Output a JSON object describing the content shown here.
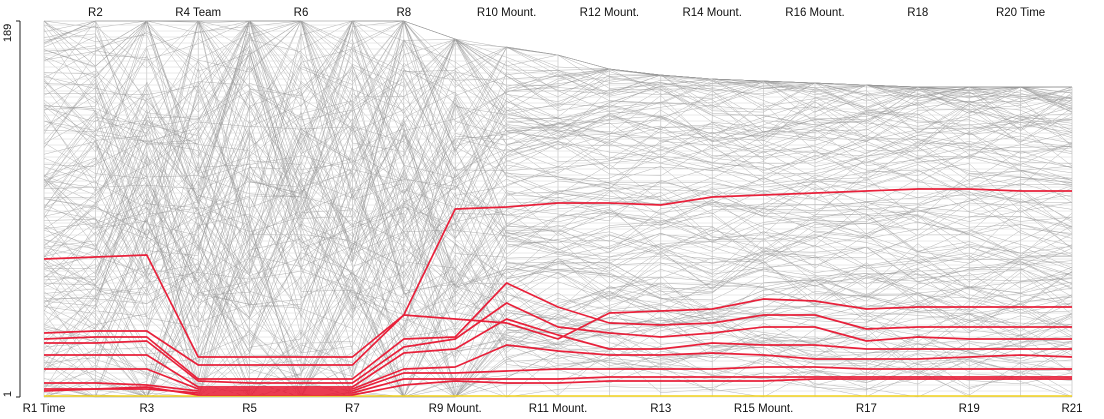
{
  "chart_data": {
    "type": "parallel_coordinates",
    "title": "",
    "y_axis": {
      "min_label": "1",
      "max_label": "189",
      "range": [
        1,
        189
      ]
    },
    "axes": [
      {
        "name": "R1 Time",
        "count": 189,
        "position": "bottom"
      },
      {
        "name": "R2",
        "count": 189,
        "position": "top"
      },
      {
        "name": "R3",
        "count": 189,
        "position": "bottom"
      },
      {
        "name": "R4 Team",
        "count": 189,
        "position": "top"
      },
      {
        "name": "R5",
        "count": 189,
        "position": "bottom"
      },
      {
        "name": "R6",
        "count": 189,
        "position": "top"
      },
      {
        "name": "R7",
        "count": 189,
        "position": "bottom"
      },
      {
        "name": "R8",
        "count": 189,
        "position": "top"
      },
      {
        "name": "R9 Mount.",
        "count": 180,
        "position": "bottom"
      },
      {
        "name": "R10 Mount.",
        "count": 176,
        "position": "top"
      },
      {
        "name": "R11 Mount.",
        "count": 172,
        "position": "bottom"
      },
      {
        "name": "R12 Mount.",
        "count": 165,
        "position": "top"
      },
      {
        "name": "R13",
        "count": 162,
        "position": "bottom"
      },
      {
        "name": "R14 Mount.",
        "count": 160,
        "position": "top"
      },
      {
        "name": "R15 Mount.",
        "count": 159,
        "position": "bottom"
      },
      {
        "name": "R16 Mount.",
        "count": 158,
        "position": "top"
      },
      {
        "name": "R17",
        "count": 157,
        "position": "bottom"
      },
      {
        "name": "R18",
        "count": 156,
        "position": "top"
      },
      {
        "name": "R19",
        "count": 156,
        "position": "bottom"
      },
      {
        "name": "R20 Time",
        "count": 156,
        "position": "top"
      },
      {
        "name": "R21",
        "count": 156,
        "position": "bottom"
      }
    ],
    "highlight_color": "#e8203a",
    "background_line_color": "#999999",
    "leader_color": "#f2d21b",
    "highlighted_series": [
      [
        70,
        71,
        72,
        21,
        21,
        21,
        21,
        42,
        95,
        96,
        98,
        98,
        97,
        101,
        102,
        103,
        104,
        105,
        105,
        104,
        104
      ],
      [
        33,
        34,
        34,
        17,
        17,
        17,
        17,
        42,
        40,
        38,
        30,
        43,
        44,
        45,
        50,
        49,
        45,
        46,
        46,
        46,
        46
      ],
      [
        30,
        31,
        31,
        10,
        10,
        10,
        10,
        30,
        31,
        58,
        46,
        38,
        37,
        38,
        42,
        42,
        35,
        36,
        36,
        36,
        36
      ],
      [
        28,
        28,
        29,
        9,
        8,
        8,
        8,
        26,
        30,
        48,
        36,
        33,
        31,
        33,
        36,
        36,
        29,
        31,
        30,
        30,
        30
      ],
      [
        22,
        22,
        22,
        6,
        6,
        6,
        6,
        23,
        25,
        40,
        32,
        25,
        25,
        28,
        27,
        27,
        25,
        25,
        25,
        25,
        25
      ],
      [
        15,
        15,
        15,
        5,
        5,
        5,
        5,
        15,
        16,
        27,
        24,
        22,
        22,
        23,
        22,
        20,
        20,
        20,
        21,
        22,
        21
      ],
      [
        8,
        8,
        7,
        4,
        4,
        4,
        4,
        13,
        13,
        14,
        15,
        15,
        15,
        15,
        16,
        16,
        15,
        15,
        15,
        15,
        15
      ],
      [
        4,
        5,
        5,
        3,
        3,
        3,
        3,
        10,
        10,
        10,
        10,
        11,
        11,
        11,
        11,
        11,
        11,
        11,
        11,
        11,
        11
      ],
      [
        5,
        5,
        6,
        2,
        2,
        2,
        2,
        7,
        9,
        8,
        8,
        9,
        9,
        9,
        9,
        10,
        10,
        10,
        10,
        10,
        10
      ]
    ],
    "leader_series": [
      1,
      1,
      1,
      1,
      1,
      1,
      1,
      1,
      1,
      1,
      1,
      1,
      1,
      1,
      1,
      1,
      1,
      1,
      1,
      1,
      1
    ],
    "background_lines": 180
  }
}
